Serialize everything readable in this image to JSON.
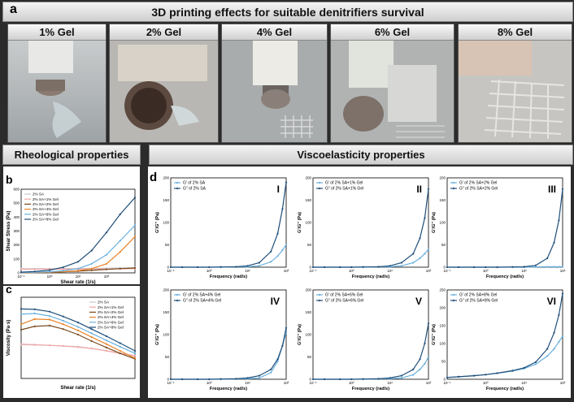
{
  "panel_a": {
    "letter": "a",
    "title": "3D printing effects for suitable denitrifiers survival",
    "photos": [
      {
        "label": "1% Gel"
      },
      {
        "label": "2% Gel"
      },
      {
        "label": "4% Gel"
      },
      {
        "label": "6% Gel"
      },
      {
        "label": "8% Gel"
      }
    ]
  },
  "rheo_header": "Rheological properties",
  "visco_header": "Viscoelasticity properties",
  "panel_b_letter": "b",
  "panel_c_letter": "c",
  "panel_d_letter": "d",
  "chart_data": [
    {
      "id": "b",
      "type": "line",
      "xlabel": "Shear rate (1/s)",
      "ylabel": "Shear Stress (Pa)",
      "xscale": "log",
      "xlim": [
        0.1,
        1000
      ],
      "ylim": [
        0,
        600
      ],
      "yticks": [
        0,
        100,
        200,
        300,
        400,
        500,
        600
      ],
      "xticks": [
        "10⁻¹",
        "10⁰",
        "10¹",
        "10²"
      ],
      "legend": "top-left",
      "x": [
        0.1,
        0.3,
        1,
        3,
        10,
        30,
        100,
        300,
        1000
      ],
      "series": [
        {
          "name": "2% SA",
          "color": "#c8c8c8",
          "values": [
            30,
            30,
            30,
            31,
            31,
            32,
            33,
            35,
            38
          ]
        },
        {
          "name": "2% SA+1% Gel",
          "color": "#f2a7a7",
          "values": [
            26,
            26,
            27,
            27,
            27,
            28,
            28,
            29,
            30
          ]
        },
        {
          "name": "2% SA+2% Gel",
          "color": "#7a4a1e",
          "values": [
            2,
            3,
            5,
            8,
            12,
            18,
            25,
            30,
            35
          ]
        },
        {
          "name": "2% SA+4% Gel",
          "color": "#e8842a",
          "values": [
            2,
            3,
            5,
            8,
            15,
            30,
            65,
            150,
            260
          ]
        },
        {
          "name": "2% SA+6% Gel",
          "color": "#6ab0de",
          "values": [
            3,
            5,
            8,
            15,
            30,
            65,
            130,
            230,
            340
          ]
        },
        {
          "name": "2% SA+8% Gel",
          "color": "#1f4e79",
          "values": [
            5,
            10,
            20,
            40,
            80,
            160,
            290,
            420,
            540
          ]
        }
      ]
    },
    {
      "id": "c",
      "type": "line",
      "xlabel": "Shear rate (1/s)",
      "ylabel": "Viscosity (Pa·s)",
      "xscale": "log",
      "yscale": "log",
      "xlim": [
        0.1,
        1000
      ],
      "ylim": [
        0.1,
        10000
      ],
      "legend": "top-right",
      "x": [
        0.1,
        0.3,
        1,
        3,
        10,
        30,
        100,
        300,
        1000
      ],
      "series": [
        {
          "name": "2% SA",
          "color": "#c8c8c8",
          "values": [
            12,
            11.5,
            11,
            10,
            9,
            7,
            5,
            3.5,
            2.5
          ]
        },
        {
          "name": "2% SA+1% Gel",
          "color": "#f2a7a7",
          "values": [
            13,
            12,
            11,
            10,
            8.5,
            7,
            5,
            3.5,
            2.5
          ]
        },
        {
          "name": "2% SA+2% Gel",
          "color": "#7a4a1e",
          "values": [
            100,
            160,
            180,
            110,
            50,
            20,
            8,
            3.5,
            1.6
          ]
        },
        {
          "name": "2% SA+4% Gel",
          "color": "#e8842a",
          "values": [
            220,
            450,
            420,
            220,
            90,
            35,
            13,
            5,
            1.8
          ]
        },
        {
          "name": "2% SA+6% Gel",
          "color": "#6ab0de",
          "values": [
            900,
            1000,
            700,
            360,
            150,
            60,
            22,
            9,
            3.5
          ]
        },
        {
          "name": "2% SA+8% Gel",
          "color": "#1f4e79",
          "values": [
            1900,
            1800,
            1300,
            650,
            280,
            110,
            40,
            15,
            5
          ]
        }
      ]
    },
    {
      "id": "d",
      "type": "line",
      "xlabel": "Frequency (rad/s)",
      "ylabel": "G'/G'' (Pa)",
      "xscale": "log",
      "xlim": [
        0.1,
        100
      ],
      "x": [
        0.1,
        0.2,
        0.5,
        1,
        2,
        5,
        10,
        20,
        40,
        60,
        80,
        100
      ],
      "subplots": [
        {
          "roman": "I",
          "ymax": 200,
          "yticks": [
            0,
            50,
            100,
            150,
            200
          ],
          "series": [
            {
              "name": "G' of 2% SA",
              "color": "#6ab0de",
              "values": [
                0,
                0,
                0,
                0,
                0,
                0.5,
                1,
                3,
                12,
                25,
                38,
                50
              ]
            },
            {
              "name": "G\" of 2% SA",
              "color": "#1f4e79",
              "values": [
                0,
                0,
                0,
                0,
                0.5,
                1,
                3,
                10,
                35,
                75,
                130,
                190
              ]
            }
          ]
        },
        {
          "roman": "II",
          "ymax": 200,
          "yticks": [
            0,
            50,
            100,
            150,
            200
          ],
          "series": [
            {
              "name": "G' of 2% SA+1% Gel",
              "color": "#6ab0de",
              "values": [
                0,
                0,
                0,
                0,
                0,
                0.5,
                1,
                3,
                10,
                20,
                30,
                40
              ]
            },
            {
              "name": "G\" of 2% SA+1% Gel",
              "color": "#1f4e79",
              "values": [
                0,
                0,
                0,
                0,
                0.5,
                1,
                3,
                10,
                30,
                65,
                110,
                175
              ]
            }
          ]
        },
        {
          "roman": "III",
          "ymax": 200,
          "yticks": [
            0,
            50,
            100,
            150,
            200
          ],
          "series": [
            {
              "name": "G' of 2% SA+2% Gel",
              "color": "#6ab0de",
              "values": [
                0,
                0,
                0,
                0,
                0,
                0,
                0,
                0.5,
                1,
                1,
                1,
                1
              ]
            },
            {
              "name": "G\" of 2% SA+2% Gel",
              "color": "#1f4e79",
              "values": [
                0,
                0,
                0,
                0,
                0,
                0.5,
                1,
                4,
                20,
                55,
                105,
                175
              ]
            }
          ]
        },
        {
          "roman": "IV",
          "ymax": 200,
          "yticks": [
            0,
            50,
            100,
            150,
            200
          ],
          "series": [
            {
              "name": "G' of 2% SA+4% Gel",
              "color": "#6ab0de",
              "values": [
                0,
                0,
                0,
                0,
                0,
                0.5,
                1,
                3,
                15,
                40,
                75,
                105
              ]
            },
            {
              "name": "G\" of 2% SA+4% Gel",
              "color": "#1f4e79",
              "values": [
                0,
                0,
                0,
                0,
                0.5,
                1,
                3,
                8,
                22,
                45,
                75,
                115
              ]
            }
          ]
        },
        {
          "roman": "V",
          "ymax": 200,
          "yticks": [
            0,
            50,
            100,
            150,
            200
          ],
          "series": [
            {
              "name": "G' of 2% SA+6% Gel",
              "color": "#6ab0de",
              "values": [
                0,
                0,
                0,
                0,
                0,
                0.5,
                1,
                3,
                10,
                22,
                35,
                50
              ]
            },
            {
              "name": "G\" of 2% SA+6% Gel",
              "color": "#1f4e79",
              "values": [
                0,
                0,
                0,
                0,
                0.5,
                1,
                3,
                8,
                22,
                45,
                80,
                125
              ]
            }
          ]
        },
        {
          "roman": "VI",
          "ymax": 250,
          "yticks": [
            0,
            50,
            100,
            150,
            200,
            250
          ],
          "series": [
            {
              "name": "G' of 2% SA+8% Gel",
              "color": "#6ab0de",
              "values": [
                5,
                7,
                10,
                13,
                17,
                23,
                30,
                42,
                65,
                85,
                105,
                120
              ]
            },
            {
              "name": "G\" of 2% SA+8% Gel",
              "color": "#1f4e79",
              "values": [
                5,
                7,
                10,
                13,
                17,
                24,
                32,
                48,
                85,
                130,
                180,
                240
              ]
            }
          ]
        }
      ]
    }
  ]
}
